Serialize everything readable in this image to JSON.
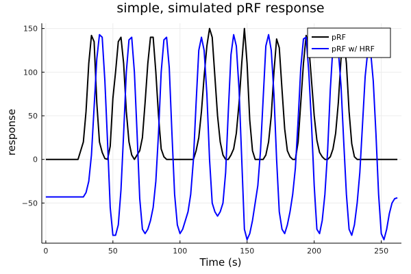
{
  "chart_data": {
    "type": "line",
    "title": "simple, simulated pRF response",
    "xlabel": "Time (s)",
    "ylabel": "response",
    "xlim": [
      -3,
      265
    ],
    "ylim": [
      -96,
      156
    ],
    "x_ticks": [
      0,
      50,
      100,
      150,
      200,
      250
    ],
    "y_ticks": [
      -50,
      0,
      50,
      100,
      150
    ],
    "x_tick_labels": [
      "0",
      "50",
      "100",
      "150",
      "200",
      "250"
    ],
    "y_tick_labels": [
      "−50",
      "0",
      "50",
      "100",
      "150"
    ],
    "grid": true,
    "legend_position": "top-right",
    "series": [
      {
        "name": "pRF",
        "color": "#000000",
        "x": [
          0,
          24,
          26,
          28,
          30,
          32,
          34,
          36,
          38,
          40,
          42,
          44,
          46,
          48,
          50,
          52,
          54,
          56,
          58,
          60,
          62,
          64,
          66,
          68,
          70,
          72,
          74,
          76,
          78,
          80,
          82,
          84,
          86,
          88,
          90,
          92,
          94,
          96,
          98,
          100,
          110,
          112,
          114,
          116,
          118,
          120,
          122,
          124,
          126,
          128,
          130,
          132,
          134,
          136,
          138,
          140,
          142,
          144,
          146,
          148,
          150,
          152,
          154,
          156,
          158,
          160,
          162,
          164,
          166,
          168,
          170,
          172,
          174,
          176,
          178,
          180,
          182,
          184,
          186,
          188,
          190,
          192,
          194,
          196,
          198,
          200,
          202,
          204,
          206,
          208,
          210,
          212,
          214,
          216,
          218,
          220,
          222,
          224,
          226,
          228,
          230,
          232,
          234,
          236,
          238,
          240,
          242,
          262
        ],
        "y": [
          0,
          0,
          10,
          20,
          55,
          110,
          142,
          135,
          65,
          20,
          8,
          1,
          0,
          15,
          70,
          100,
          135,
          140,
          110,
          55,
          20,
          5,
          0,
          5,
          10,
          25,
          65,
          110,
          140,
          140,
          100,
          50,
          12,
          3,
          0,
          0,
          0,
          0,
          0,
          0,
          0,
          10,
          25,
          55,
          95,
          130,
          150,
          140,
          95,
          50,
          20,
          5,
          0,
          0,
          5,
          12,
          30,
          65,
          110,
          150,
          110,
          45,
          10,
          0,
          0,
          0,
          0,
          5,
          20,
          50,
          100,
          138,
          128,
          80,
          35,
          10,
          3,
          0,
          0,
          20,
          65,
          110,
          142,
          130,
          90,
          50,
          22,
          8,
          3,
          0,
          0,
          3,
          12,
          30,
          65,
          115,
          140,
          110,
          55,
          18,
          3,
          0,
          0,
          0,
          0,
          0,
          0,
          0
        ]
      },
      {
        "name": "pRF w/ HRF",
        "color": "#0000ff",
        "x": [
          0,
          28,
          30,
          32,
          34,
          36,
          38,
          40,
          42,
          44,
          46,
          48,
          50,
          52,
          54,
          56,
          58,
          60,
          62,
          64,
          66,
          68,
          70,
          72,
          74,
          76,
          78,
          80,
          82,
          84,
          86,
          88,
          90,
          92,
          94,
          96,
          98,
          100,
          102,
          104,
          106,
          108,
          110,
          112,
          114,
          116,
          118,
          120,
          122,
          124,
          126,
          128,
          130,
          132,
          134,
          136,
          138,
          140,
          142,
          144,
          146,
          148,
          150,
          152,
          154,
          156,
          158,
          160,
          162,
          164,
          166,
          168,
          170,
          172,
          174,
          176,
          178,
          180,
          182,
          184,
          186,
          188,
          190,
          192,
          194,
          196,
          198,
          200,
          202,
          204,
          206,
          208,
          210,
          212,
          214,
          216,
          218,
          220,
          222,
          224,
          226,
          228,
          230,
          232,
          234,
          236,
          238,
          240,
          242,
          244,
          246,
          248,
          250,
          252,
          254,
          256,
          258,
          260,
          262
        ],
        "y": [
          -43,
          -43,
          -38,
          -25,
          5,
          60,
          115,
          143,
          140,
          90,
          20,
          -55,
          -87,
          -87,
          -75,
          -35,
          30,
          100,
          137,
          140,
          100,
          30,
          -45,
          -80,
          -85,
          -80,
          -70,
          -55,
          -25,
          30,
          100,
          137,
          140,
          105,
          30,
          -40,
          -75,
          -85,
          -80,
          -70,
          -60,
          -40,
          0,
          65,
          125,
          140,
          125,
          75,
          0,
          -50,
          -60,
          -65,
          -60,
          -50,
          -15,
          55,
          120,
          143,
          130,
          80,
          0,
          -80,
          -92,
          -85,
          -70,
          -50,
          -30,
          10,
          70,
          130,
          143,
          125,
          75,
          0,
          -60,
          -80,
          -85,
          -75,
          -60,
          -40,
          -10,
          45,
          105,
          138,
          140,
          100,
          40,
          -30,
          -80,
          -85,
          -70,
          -40,
          10,
          80,
          130,
          140,
          125,
          85,
          20,
          -40,
          -80,
          -87,
          -75,
          -50,
          -15,
          40,
          95,
          125,
          125,
          90,
          30,
          -40,
          -85,
          -92,
          -80,
          -62,
          -50,
          -45,
          -44
        ]
      }
    ]
  }
}
